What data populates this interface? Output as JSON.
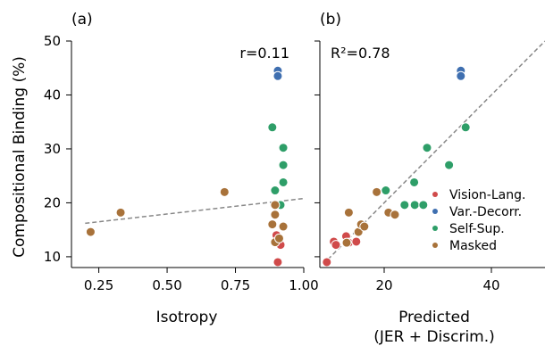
{
  "chart_data": [
    {
      "type": "scatter",
      "panel_label": "(a)",
      "xlabel": "Isotropy",
      "ylabel": "Compositional Binding (%)",
      "xlim": [
        0.15,
        1.0
      ],
      "ylim": [
        8,
        50
      ],
      "xticks": [
        0.25,
        0.5,
        0.75,
        1.0
      ],
      "xtick_labels": [
        "0.25",
        "0.50",
        "0.75",
        "1.00"
      ],
      "yticks": [
        10,
        20,
        30,
        40,
        50
      ],
      "ytick_labels": [
        "10",
        "20",
        "30",
        "40",
        "50"
      ],
      "annotation": "r=0.11",
      "trendline": {
        "style": "dashed",
        "x": [
          0.2,
          1.0
        ],
        "y": [
          16.2,
          20.8
        ]
      },
      "series": [
        {
          "name": "Vision-Lang.",
          "color": "#d04a4a",
          "points": [
            [
              0.905,
              13.8
            ],
            [
              0.91,
              12.5
            ],
            [
              0.9,
              13.0
            ],
            [
              0.915,
              12.2
            ],
            [
              0.905,
              9.0
            ],
            [
              0.9,
              14.0
            ]
          ]
        },
        {
          "name": "Var.-Decorr.",
          "color": "#3f6fb0",
          "points": [
            [
              0.905,
              44.5
            ],
            [
              0.905,
              43.5
            ]
          ]
        },
        {
          "name": "Self-Sup.",
          "color": "#2e9e68",
          "points": [
            [
              0.885,
              34.0
            ],
            [
              0.925,
              30.2
            ],
            [
              0.925,
              27.0
            ],
            [
              0.925,
              23.8
            ],
            [
              0.895,
              22.3
            ],
            [
              0.915,
              19.6
            ]
          ]
        },
        {
          "name": "Masked",
          "color": "#a8723a",
          "points": [
            [
              0.22,
              14.6
            ],
            [
              0.33,
              18.2
            ],
            [
              0.71,
              22.0
            ],
            [
              0.895,
              17.8
            ],
            [
              0.895,
              19.6
            ],
            [
              0.885,
              16.0
            ],
            [
              0.925,
              15.6
            ],
            [
              0.895,
              12.7
            ],
            [
              0.91,
              13.4
            ]
          ]
        }
      ]
    },
    {
      "type": "scatter",
      "panel_label": "(b)",
      "xlabel": "Predicted\n(JER + Discrim.)",
      "ylabel": "",
      "xlim": [
        8,
        50
      ],
      "ylim": [
        8,
        50
      ],
      "xticks": [
        20,
        40
      ],
      "xtick_labels": [
        "20",
        "40"
      ],
      "yticks": [
        10,
        20,
        30,
        40,
        50
      ],
      "annotation": "R²=0.78",
      "trendline": {
        "style": "dashed",
        "x": [
          9.5,
          50
        ],
        "y": [
          9.5,
          50
        ]
      },
      "legend": {
        "position": "lower-right",
        "entries": [
          "Vision-Lang.",
          "Var.-Decorr.",
          "Self-Sup.",
          "Masked"
        ]
      },
      "series": [
        {
          "name": "Vision-Lang.",
          "color": "#d04a4a",
          "points": [
            [
              9.3,
              9.0
            ],
            [
              10.6,
              12.8
            ],
            [
              11.0,
              12.2
            ],
            [
              12.9,
              13.8
            ],
            [
              13.4,
              12.6
            ],
            [
              14.8,
              12.8
            ]
          ]
        },
        {
          "name": "Var.-Decorr.",
          "color": "#3f6fb0",
          "points": [
            [
              34.3,
              44.5
            ],
            [
              34.3,
              43.5
            ]
          ]
        },
        {
          "name": "Self-Sup.",
          "color": "#2e9e68",
          "points": [
            [
              20.3,
              22.3
            ],
            [
              23.8,
              19.6
            ],
            [
              25.6,
              23.8
            ],
            [
              25.7,
              19.6
            ],
            [
              27.3,
              19.6
            ],
            [
              28.0,
              30.2
            ],
            [
              32.1,
              27.0
            ],
            [
              35.2,
              34.0
            ]
          ]
        },
        {
          "name": "Masked",
          "color": "#a8723a",
          "points": [
            [
              13.0,
              12.6
            ],
            [
              13.4,
              18.2
            ],
            [
              15.2,
              14.6
            ],
            [
              15.7,
              16.0
            ],
            [
              16.3,
              15.6
            ],
            [
              18.6,
              22.0
            ],
            [
              20.8,
              18.2
            ],
            [
              22.0,
              17.8
            ]
          ]
        }
      ]
    }
  ]
}
